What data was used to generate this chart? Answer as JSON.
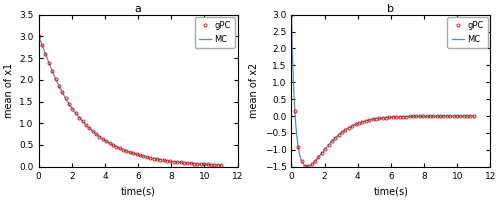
{
  "title_a": "a",
  "title_b": "b",
  "xlabel": "time(s)",
  "ylabel_a": "mean of x1",
  "ylabel_b": "mean of x2",
  "xlim": [
    0,
    12
  ],
  "ylim_a": [
    0,
    3.5
  ],
  "ylim_b": [
    -1.5,
    3.0
  ],
  "yticks_a": [
    0,
    0.5,
    1.0,
    1.5,
    2.0,
    2.5,
    3.0,
    3.5
  ],
  "yticks_b": [
    -1.5,
    -1.0,
    -0.5,
    0.0,
    0.5,
    1.0,
    1.5,
    2.0,
    2.5,
    3.0
  ],
  "xticks": [
    0,
    2,
    4,
    6,
    8,
    10,
    12
  ],
  "mc_color": "#5b8db8",
  "gpc_color": "#cc2222",
  "legend_gpc": "gPC",
  "legend_mc": "MC",
  "figsize": [
    5.0,
    2.0
  ],
  "dpi": 100
}
